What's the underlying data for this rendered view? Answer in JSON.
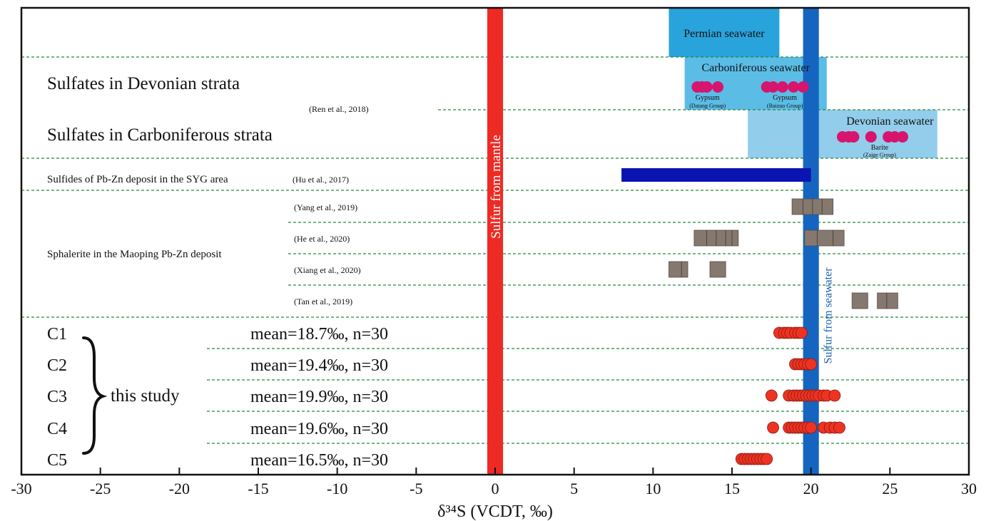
{
  "chart_data": {
    "type": "scatter",
    "xlabel": "δ³⁴S (VCDT, ‰)",
    "xlim": [
      -30,
      30
    ],
    "x_ticks": [
      "-30",
      "-25",
      "-20",
      "-15",
      "-10",
      "-5",
      "0",
      "5",
      "10",
      "15",
      "20",
      "25",
      "30"
    ],
    "reference_bands": [
      {
        "label": "Sulfur from mantle",
        "x": [
          -0.5,
          0.5
        ],
        "color": "#ee2a24"
      },
      {
        "label": "Sulfur from seawater",
        "x": [
          19.5,
          20.5
        ],
        "color": "#1565c0"
      }
    ],
    "seawater_boxes": [
      {
        "label": "Permian seawater",
        "x": [
          11,
          18
        ],
        "color": "#29a3dc"
      },
      {
        "label": "Carboniferous seawater",
        "x": [
          12,
          21
        ],
        "color": "#5bbde6"
      },
      {
        "label": "Devonian seawater",
        "x": [
          16,
          28
        ],
        "color": "#93cdec"
      }
    ],
    "row_labels": {
      "devonian": "Sulfates in Devonian strata",
      "ren_ref": "(Ren et al., 2018)",
      "carboniferous": "Sulfates in Carboniferous strata",
      "syg": "Sulfides of Pb-Zn deposit in the SYG area",
      "hu_ref": "(Hu et al., 2017)",
      "sphalerite": "Sphalerite in the Maoping Pb-Zn deposit",
      "this_study": "this study"
    },
    "gypsum_groups": [
      {
        "mineral": "Gypsum",
        "unit": "(Datang Group)",
        "values": [
          12.8,
          13.1,
          13.4,
          14.1
        ]
      },
      {
        "mineral": "Gypsum",
        "unit": "(Baizuo Group)",
        "values": [
          17.2,
          17.6,
          18.2,
          18.9,
          19.5
        ]
      }
    ],
    "barite_group": {
      "mineral": "Barite",
      "unit": "(Zaige Group)",
      "values": [
        22.0,
        22.4,
        22.7,
        23.8,
        24.9,
        25.3,
        25.8
      ]
    },
    "syg_range": [
      8,
      20
    ],
    "sphalerite_rows": [
      {
        "ref": "(Yang et al., 2019)",
        "boxes": [
          [
            18.8,
            21.4
          ]
        ],
        "dividers": [
          19.5,
          20.1,
          20.7
        ]
      },
      {
        "ref": "(He et al., 2020)",
        "boxes": [
          [
            12.6,
            15.4
          ],
          [
            19.6,
            22.1
          ]
        ],
        "dividers": [
          13.4,
          14.0,
          14.6,
          15.0,
          20.4,
          21.4
        ]
      },
      {
        "ref": "(Xiang et al., 2020)",
        "boxes": [
          [
            11.0,
            12.2
          ],
          [
            13.6,
            14.6
          ]
        ],
        "dividers": [
          11.8
        ]
      },
      {
        "ref": "(Tan et al., 2019)",
        "boxes": [
          [
            22.6,
            23.6
          ],
          [
            24.2,
            25.5
          ]
        ],
        "dividers": [
          24.8
        ]
      }
    ],
    "samples": [
      {
        "name": "C1",
        "stat": "mean=18.7‰, n=30",
        "values": [
          18.0,
          18.3,
          18.5,
          18.7,
          19.0,
          19.2,
          19.4
        ]
      },
      {
        "name": "C2",
        "stat": "mean=19.4‰, n=30",
        "values": [
          19.0,
          19.2,
          19.4,
          19.6,
          19.8,
          20.0
        ]
      },
      {
        "name": "C3",
        "stat": "mean=19.9‰, n=30",
        "values": [
          17.5,
          18.6,
          18.9,
          19.1,
          19.3,
          19.5,
          19.7,
          19.9,
          20.1,
          20.3,
          20.5,
          20.8,
          21.0,
          21.5
        ]
      },
      {
        "name": "C4",
        "stat": "mean=19.6‰, n=30",
        "values": [
          17.6,
          18.6,
          18.8,
          19.0,
          19.2,
          19.4,
          19.6,
          19.8,
          20.0,
          20.8,
          21.2,
          21.5,
          21.8
        ]
      },
      {
        "name": "C5",
        "stat": "mean=16.5‰, n=30",
        "values": [
          15.6,
          15.8,
          16.0,
          16.2,
          16.4,
          16.6,
          16.8,
          17.0,
          17.2
        ]
      }
    ],
    "colors": {
      "gypsum": "#d6156f",
      "sample": "#ee3322",
      "syg": "#0a14b0",
      "sphalerite": "#85786f",
      "divider": "#1f8b3a"
    }
  }
}
